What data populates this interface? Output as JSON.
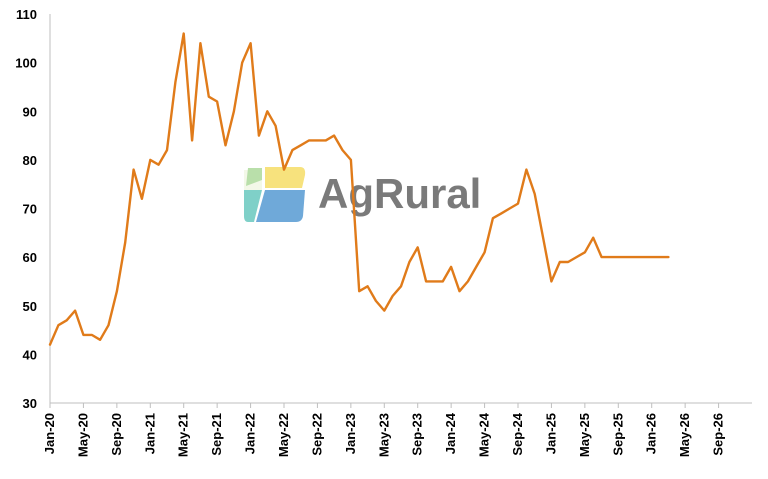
{
  "watermark": {
    "text": "AgRural"
  },
  "chart_data": {
    "type": "line",
    "title": "",
    "xlabel": "",
    "ylabel": "",
    "ylim": [
      30,
      110
    ],
    "yticks": [
      30,
      40,
      50,
      60,
      70,
      80,
      90,
      100,
      110
    ],
    "xlim": [
      "2020-01",
      "2027-01"
    ],
    "xticks": [
      "Jan-20",
      "May-20",
      "Sep-20",
      "Jan-21",
      "May-21",
      "Sep-21",
      "Jan-22",
      "May-22",
      "Sep-22",
      "Jan-23",
      "May-23",
      "Sep-23",
      "Jan-24",
      "May-24",
      "Sep-24",
      "Jan-25",
      "May-25",
      "Sep-25",
      "Jan-26",
      "May-26",
      "Sep-26"
    ],
    "grid": false,
    "legend": "none",
    "colors": {
      "series": "#e07b1a",
      "axis": "#bfbfbf"
    },
    "series": [
      {
        "x": [
          "2020-01",
          "2020-02",
          "2020-03",
          "2020-04",
          "2020-05",
          "2020-06",
          "2020-07",
          "2020-08",
          "2020-09",
          "2020-10",
          "2020-11",
          "2020-12",
          "2021-01",
          "2021-02",
          "2021-03",
          "2021-04",
          "2021-05",
          "2021-06",
          "2021-07",
          "2021-08",
          "2021-09",
          "2021-10",
          "2021-11",
          "2021-12",
          "2022-01",
          "2022-02",
          "2022-03",
          "2022-04",
          "2022-05",
          "2022-06",
          "2022-07",
          "2022-08",
          "2022-09",
          "2022-10",
          "2022-11",
          "2022-12",
          "2023-01",
          "2023-02",
          "2023-03",
          "2023-04",
          "2023-05",
          "2023-06",
          "2023-07",
          "2023-08",
          "2023-09",
          "2023-10",
          "2023-11",
          "2023-12",
          "2024-01",
          "2024-02",
          "2024-03",
          "2024-04",
          "2024-05",
          "2024-06",
          "2024-07",
          "2024-08",
          "2024-09",
          "2024-10",
          "2024-11",
          "2024-12",
          "2025-01",
          "2025-02",
          "2025-03",
          "2025-04",
          "2025-05",
          "2025-06",
          "2025-07",
          "2025-08",
          "2025-09",
          "2025-10",
          "2025-11",
          "2025-12",
          "2026-01",
          "2026-02",
          "2026-03"
        ],
        "values": [
          42,
          46,
          47,
          49,
          44,
          44,
          43,
          46,
          53,
          63,
          78,
          72,
          80,
          79,
          82,
          96,
          106,
          84,
          104,
          93,
          92,
          83,
          90,
          100,
          104,
          85,
          90,
          87,
          78,
          82,
          83,
          84,
          84,
          84,
          85,
          82,
          80,
          53,
          54,
          51,
          49,
          52,
          54,
          59,
          62,
          55,
          55,
          55,
          58,
          53,
          55,
          58,
          61,
          68,
          69,
          70,
          71,
          78,
          73,
          64,
          55,
          59,
          59,
          60,
          61,
          64,
          60,
          60,
          60,
          60,
          60,
          60,
          60,
          60,
          60
        ]
      }
    ]
  }
}
